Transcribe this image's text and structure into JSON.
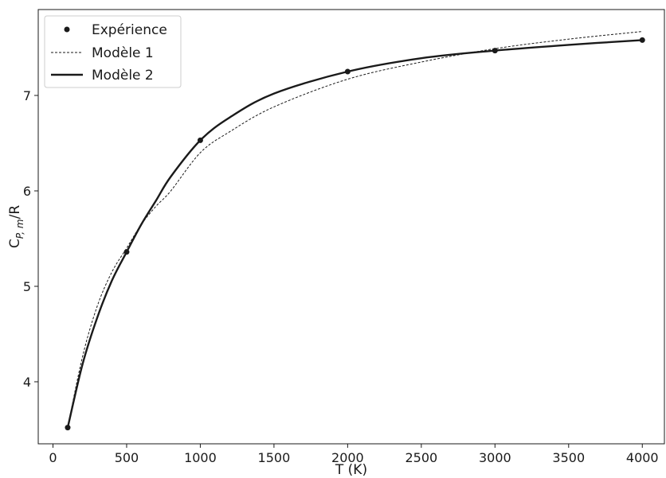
{
  "chart_data": {
    "type": "line",
    "xlabel": "T (K)",
    "ylabel": "C",
    "ylabel_sub": "P, m",
    "ylabel_suffix": "/R",
    "xlim": [
      -100,
      4150
    ],
    "ylim": [
      3.35,
      7.9
    ],
    "xticks": [
      0,
      500,
      1000,
      1500,
      2000,
      2500,
      3000,
      3500,
      4000
    ],
    "yticks": [
      4,
      5,
      6,
      7
    ],
    "grid": false,
    "legend_position": "top-left",
    "series": [
      {
        "name": "Expérience",
        "style": "markers",
        "color": "#1a1a1a",
        "x": [
          100,
          500,
          1000,
          2000,
          3000,
          4000
        ],
        "y": [
          3.52,
          5.36,
          6.53,
          7.25,
          7.47,
          7.58
        ]
      },
      {
        "name": "Modèle 1",
        "style": "dashed",
        "color": "#1a1a1a",
        "x": [
          100,
          200,
          300,
          400,
          500,
          600,
          700,
          800,
          1000,
          1200,
          1500,
          2000,
          2500,
          3000,
          3500,
          4000
        ],
        "y": [
          3.52,
          4.26,
          4.79,
          5.15,
          5.4,
          5.65,
          5.84,
          6.0,
          6.4,
          6.62,
          6.88,
          7.17,
          7.35,
          7.49,
          7.59,
          7.67
        ]
      },
      {
        "name": "Modèle 2",
        "style": "solid",
        "color": "#1a1a1a",
        "x": [
          100,
          200,
          300,
          400,
          500,
          600,
          700,
          800,
          1000,
          1200,
          1500,
          2000,
          2500,
          3000,
          3500,
          4000
        ],
        "y": [
          3.52,
          4.18,
          4.67,
          5.06,
          5.36,
          5.65,
          5.9,
          6.15,
          6.53,
          6.77,
          7.02,
          7.25,
          7.39,
          7.47,
          7.53,
          7.58
        ]
      }
    ]
  }
}
